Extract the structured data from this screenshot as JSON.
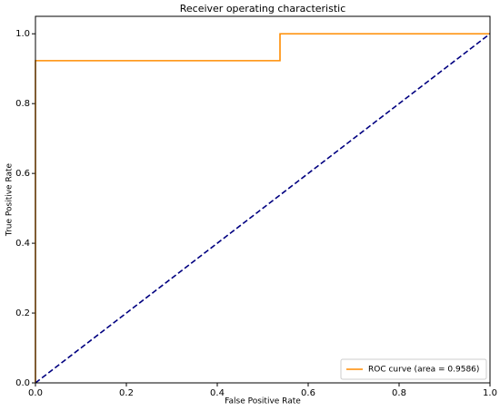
{
  "chart_data": {
    "type": "line",
    "title": "Receiver operating characteristic",
    "xlabel": "False Positive Rate",
    "ylabel": "True Positive Rate",
    "series": [
      {
        "name": "ROC curve (area = 0.9586)",
        "color": "#ff8c00",
        "style": "solid",
        "x": [
          0,
          0,
          0.538,
          0.538,
          1
        ],
        "values": [
          0,
          0.923,
          0.923,
          1,
          1
        ]
      },
      {
        "color": "#000080",
        "style": "dashed",
        "x": [
          0,
          1
        ],
        "values": [
          0,
          1
        ]
      }
    ],
    "xlim": [
      0,
      1
    ],
    "ylim": [
      0,
      1.05
    ],
    "xticks": [
      {
        "value": 0,
        "label": "0.0"
      },
      {
        "value": 0.2,
        "label": "0.2"
      },
      {
        "value": 0.4,
        "label": "0.4"
      },
      {
        "value": 0.6,
        "label": "0.6"
      },
      {
        "value": 0.8,
        "label": "0.8"
      },
      {
        "value": 1,
        "label": "1.0"
      }
    ],
    "yticks": [
      {
        "value": 0,
        "label": "0.0"
      },
      {
        "value": 0.2,
        "label": "0.2"
      },
      {
        "value": 0.4,
        "label": "0.4"
      },
      {
        "value": 0.6,
        "label": "0.6"
      },
      {
        "value": 0.8,
        "label": "0.8"
      },
      {
        "value": 1,
        "label": "1.0"
      }
    ],
    "grid": false,
    "legend": "lower right"
  }
}
